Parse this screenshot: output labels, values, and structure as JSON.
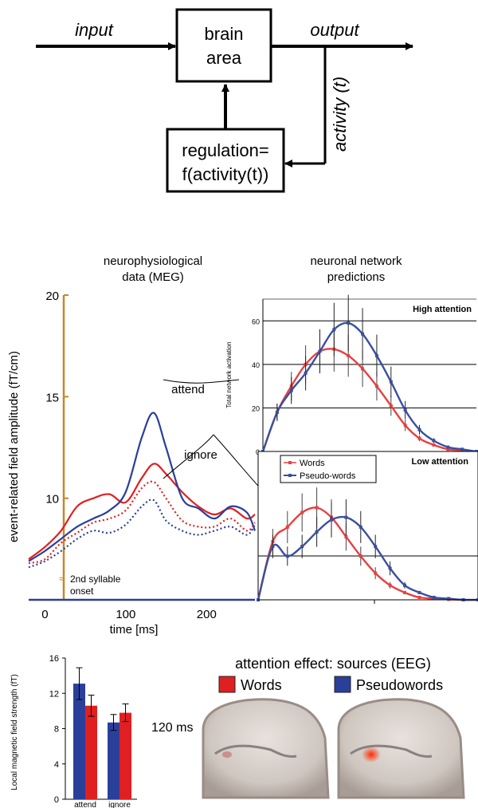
{
  "block_diagram": {
    "input_label": "input",
    "output_label": "output",
    "box_main_line1": "brain",
    "box_main_line2": "area",
    "activity_label": "activity (t)",
    "box_reg_line1": "regulation=",
    "box_reg_line2": "f(activity(t))"
  },
  "meg_panel": {
    "title_line1": "neurophysiological",
    "title_line2": "data (MEG)",
    "ylabel": "event-related field amplitude (fT/cm)",
    "xlabel": "time [ms]",
    "yticks": [
      "20",
      "15",
      "10"
    ],
    "xticks": [
      "0",
      "100",
      "200"
    ],
    "attend_label": "attend",
    "ignore_label": "ignore",
    "onset_label_line1": "2nd syllable",
    "onset_label_line2": "onset"
  },
  "network_panel": {
    "title_line1": "neuronal network",
    "title_line2": "predictions",
    "high_label": "High attention",
    "low_label": "Low attention",
    "ylabel": "Total network activation",
    "yticks_high": [
      "60",
      "40",
      "20",
      "0"
    ],
    "legend_words": "Words",
    "legend_pseudo": "Pseudo-words"
  },
  "bar_panel": {
    "ylabel": "Local magnetic field strength (fT)",
    "yticks": [
      "16",
      "12",
      "8",
      "4",
      "0"
    ],
    "categories": [
      "attend",
      "ignore"
    ]
  },
  "eeg_panel": {
    "title": "attention effect: sources (EEG)",
    "legend_words": "Words",
    "legend_pseudo": "Pseudowords",
    "time_label": "120 ms"
  },
  "colors": {
    "words": "#e02020",
    "pseudowords": "#2a3f9a",
    "onset_line": "#c8872a",
    "network_words": "#e84040",
    "network_pseudo": "#3a4f9e"
  },
  "chart_data": [
    {
      "type": "line",
      "name_ref": "meg",
      "xlabel": "time [ms]",
      "ylabel": "event-related field amplitude (fT/cm)",
      "xlim": [
        -30,
        250
      ],
      "ylim": [
        5,
        20
      ],
      "series": [
        {
          "name": "attend",
          "style": "solid",
          "color": "words",
          "x": [
            -30,
            -10,
            10,
            30,
            50,
            70,
            90,
            110,
            125,
            140,
            160,
            180,
            200,
            220,
            240,
            250
          ],
          "y": [
            7.0,
            7.6,
            8.4,
            9.6,
            10.0,
            10.2,
            9.8,
            11.0,
            11.7,
            11.2,
            10.3,
            9.6,
            9.2,
            9.5,
            9.0,
            9.2
          ]
        },
        {
          "name": "attend",
          "style": "solid",
          "color": "pseudowords",
          "x": [
            -30,
            -10,
            10,
            30,
            50,
            70,
            90,
            110,
            125,
            140,
            160,
            180,
            200,
            220,
            240,
            250
          ],
          "y": [
            6.9,
            7.4,
            8.0,
            8.6,
            9.0,
            9.4,
            10.3,
            13.0,
            14.2,
            12.5,
            10.0,
            9.5,
            9.0,
            9.6,
            9.3,
            8.4
          ]
        },
        {
          "name": "ignore",
          "style": "dotted",
          "color": "words",
          "x": [
            -30,
            -10,
            10,
            30,
            50,
            70,
            90,
            110,
            125,
            140,
            160,
            180,
            200,
            220,
            240,
            250
          ],
          "y": [
            6.8,
            7.0,
            7.8,
            8.3,
            8.8,
            9.0,
            9.4,
            10.5,
            10.8,
            10.0,
            8.9,
            8.6,
            8.6,
            9.0,
            8.4,
            8.8
          ]
        },
        {
          "name": "ignore",
          "style": "dotted",
          "color": "pseudowords",
          "x": [
            -30,
            -10,
            10,
            30,
            50,
            70,
            90,
            110,
            125,
            140,
            160,
            180,
            200,
            220,
            240,
            250
          ],
          "y": [
            6.6,
            6.9,
            7.4,
            8.0,
            8.4,
            8.3,
            8.7,
            9.6,
            9.9,
            8.9,
            8.4,
            8.2,
            8.4,
            8.6,
            8.2,
            8.7
          ]
        }
      ]
    },
    {
      "type": "line",
      "name_ref": "network-high",
      "title": "High attention",
      "ylabel": "Total network activation",
      "ylim": [
        0,
        70
      ],
      "series": [
        {
          "name": "Words",
          "color": "network_words",
          "x": [
            0,
            2,
            4,
            6,
            8,
            10,
            12,
            14,
            16,
            18,
            20,
            22,
            24,
            26,
            28,
            30
          ],
          "y": [
            0,
            18,
            30,
            40,
            46,
            47,
            44,
            38,
            30,
            21,
            12,
            6,
            3,
            1,
            0.5,
            0
          ]
        },
        {
          "name": "Pseudo-words",
          "color": "network_pseudo",
          "x": [
            0,
            2,
            4,
            6,
            8,
            10,
            12,
            14,
            16,
            18,
            20,
            22,
            24,
            26,
            28,
            30
          ],
          "y": [
            0,
            18,
            28,
            36,
            46,
            56,
            59,
            54,
            44,
            32,
            19,
            10,
            5,
            2,
            1,
            0
          ]
        }
      ]
    },
    {
      "type": "line",
      "name_ref": "network-low",
      "title": "Low attention",
      "series": [
        {
          "name": "Words",
          "color": "network_words",
          "x": [
            0,
            2,
            4,
            6,
            8,
            10,
            12,
            14,
            16,
            18,
            20,
            22,
            24,
            26,
            28,
            30
          ],
          "y": [
            0,
            24,
            30,
            36,
            38,
            34,
            26,
            18,
            11,
            6,
            3,
            1,
            0.5,
            0.2,
            0,
            0
          ]
        },
        {
          "name": "Pseudo-words",
          "color": "network_pseudo",
          "x": [
            0,
            2,
            4,
            6,
            8,
            10,
            12,
            14,
            16,
            18,
            20,
            22,
            24,
            26,
            28,
            30
          ],
          "y": [
            0,
            22,
            18,
            22,
            28,
            33,
            34,
            30,
            22,
            13,
            6,
            3,
            1,
            0.5,
            0,
            0
          ]
        }
      ]
    },
    {
      "type": "bar",
      "name_ref": "bars",
      "categories": [
        "attend",
        "ignore"
      ],
      "ylabel": "Local magnetic field strength (fT)",
      "ylim": [
        0,
        16
      ],
      "series": [
        {
          "name": "Pseudowords",
          "color": "pseudowords",
          "values": [
            13.1,
            8.7
          ],
          "errors": [
            1.8,
            0.9
          ]
        },
        {
          "name": "Words",
          "color": "words",
          "values": [
            10.6,
            9.8
          ],
          "errors": [
            1.2,
            1.0
          ]
        }
      ]
    }
  ]
}
